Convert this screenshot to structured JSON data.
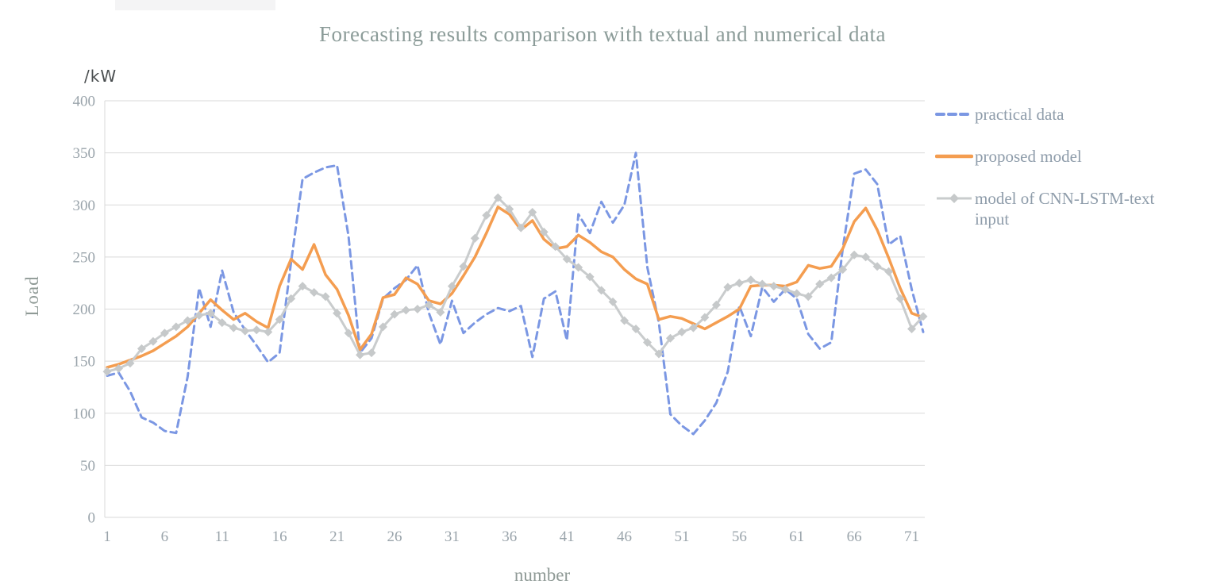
{
  "page": {
    "background": "#ffffff"
  },
  "artifact_bar": {
    "color": "#f4f4f5"
  },
  "title": {
    "text": "Forecasting results comparison with textual and numerical data",
    "color": "#8c9c99"
  },
  "y_axis": {
    "unit_label": "/kW",
    "title": "Load",
    "tick_color": "#9aa4ab"
  },
  "x_axis": {
    "title": "number",
    "tick_color": "#9aa4ab"
  },
  "legend": {
    "position": "right",
    "text_color": "#8e9caa",
    "items": [
      {
        "label": "practical data",
        "swatch": "dashed-line",
        "color": "#7b97e3"
      },
      {
        "label": "proposed model",
        "swatch": "solid-line",
        "color": "#f49d50"
      },
      {
        "label": "model of CNN-LSTM-text input",
        "swatch": "line-with-diamond-marker",
        "color": "#c9cccd"
      }
    ]
  },
  "chart_data": {
    "type": "line",
    "title": "Forecasting results comparison with textual and numerical data",
    "xlabel": "number",
    "ylabel": "Load",
    "y_unit": "/kW",
    "ylim": [
      0,
      400
    ],
    "grid": true,
    "legend_position": "right",
    "x_ticks": [
      1,
      6,
      11,
      16,
      21,
      26,
      31,
      36,
      41,
      46,
      51,
      56,
      61,
      66,
      71
    ],
    "y_ticks": [
      0,
      50,
      100,
      150,
      200,
      250,
      300,
      350,
      400
    ],
    "x": [
      1,
      2,
      3,
      4,
      5,
      6,
      7,
      8,
      9,
      10,
      11,
      12,
      13,
      14,
      15,
      16,
      17,
      18,
      19,
      20,
      21,
      22,
      23,
      24,
      25,
      26,
      27,
      28,
      29,
      30,
      31,
      32,
      33,
      34,
      35,
      36,
      37,
      38,
      39,
      40,
      41,
      42,
      43,
      44,
      45,
      46,
      47,
      48,
      49,
      50,
      51,
      52,
      53,
      54,
      55,
      56,
      57,
      58,
      59,
      60,
      61,
      62,
      63,
      64,
      65,
      66,
      67,
      68,
      69,
      70,
      71,
      72
    ],
    "series": [
      {
        "name": "practical data",
        "style": "dashed",
        "color": "#7b97e3",
        "width": 3,
        "values": [
          136,
          139,
          121,
          96,
          91,
          83,
          81,
          135,
          220,
          183,
          237,
          197,
          180,
          165,
          149,
          158,
          245,
          325,
          331,
          336,
          338,
          270,
          158,
          172,
          210,
          220,
          228,
          242,
          196,
          166,
          208,
          177,
          187,
          195,
          201,
          198,
          203,
          154,
          210,
          217,
          170,
          291,
          273,
          303,
          283,
          300,
          350,
          240,
          187,
          99,
          88,
          80,
          93,
          110,
          140,
          203,
          174,
          221,
          207,
          219,
          210,
          176,
          162,
          168,
          258,
          330,
          334,
          320,
          262,
          270,
          219,
          178
        ]
      },
      {
        "name": "proposed model",
        "style": "solid",
        "color": "#f49d50",
        "width": 3.5,
        "values": [
          144,
          147,
          151,
          155,
          160,
          167,
          174,
          183,
          196,
          209,
          199,
          190,
          196,
          188,
          182,
          222,
          248,
          238,
          262,
          233,
          219,
          194,
          161,
          176,
          211,
          214,
          230,
          224,
          208,
          205,
          215,
          232,
          250,
          273,
          298,
          291,
          276,
          285,
          267,
          258,
          260,
          271,
          264,
          255,
          250,
          238,
          229,
          224,
          190,
          193,
          191,
          186,
          181,
          187,
          193,
          200,
          222,
          223,
          223,
          222,
          226,
          242,
          239,
          241,
          258,
          284,
          297,
          276,
          249,
          220,
          196,
          192
        ]
      },
      {
        "name": "model of CNN-LSTM-text input",
        "style": "solid",
        "marker": "diamond",
        "color": "#c9cccd",
        "marker_color": "#c6c9ca",
        "width": 3,
        "values": [
          140,
          143,
          148,
          162,
          169,
          177,
          183,
          189,
          194,
          196,
          187,
          182,
          179,
          180,
          178,
          190,
          210,
          222,
          216,
          212,
          196,
          177,
          156,
          158,
          183,
          195,
          199,
          200,
          204,
          197,
          222,
          241,
          268,
          290,
          307,
          296,
          278,
          293,
          274,
          260,
          248,
          240,
          231,
          218,
          207,
          189,
          181,
          168,
          157,
          172,
          178,
          182,
          192,
          204,
          221,
          225,
          228,
          224,
          222,
          219,
          215,
          212,
          224,
          230,
          238,
          252,
          250,
          241,
          236,
          210,
          181,
          193
        ]
      }
    ]
  }
}
